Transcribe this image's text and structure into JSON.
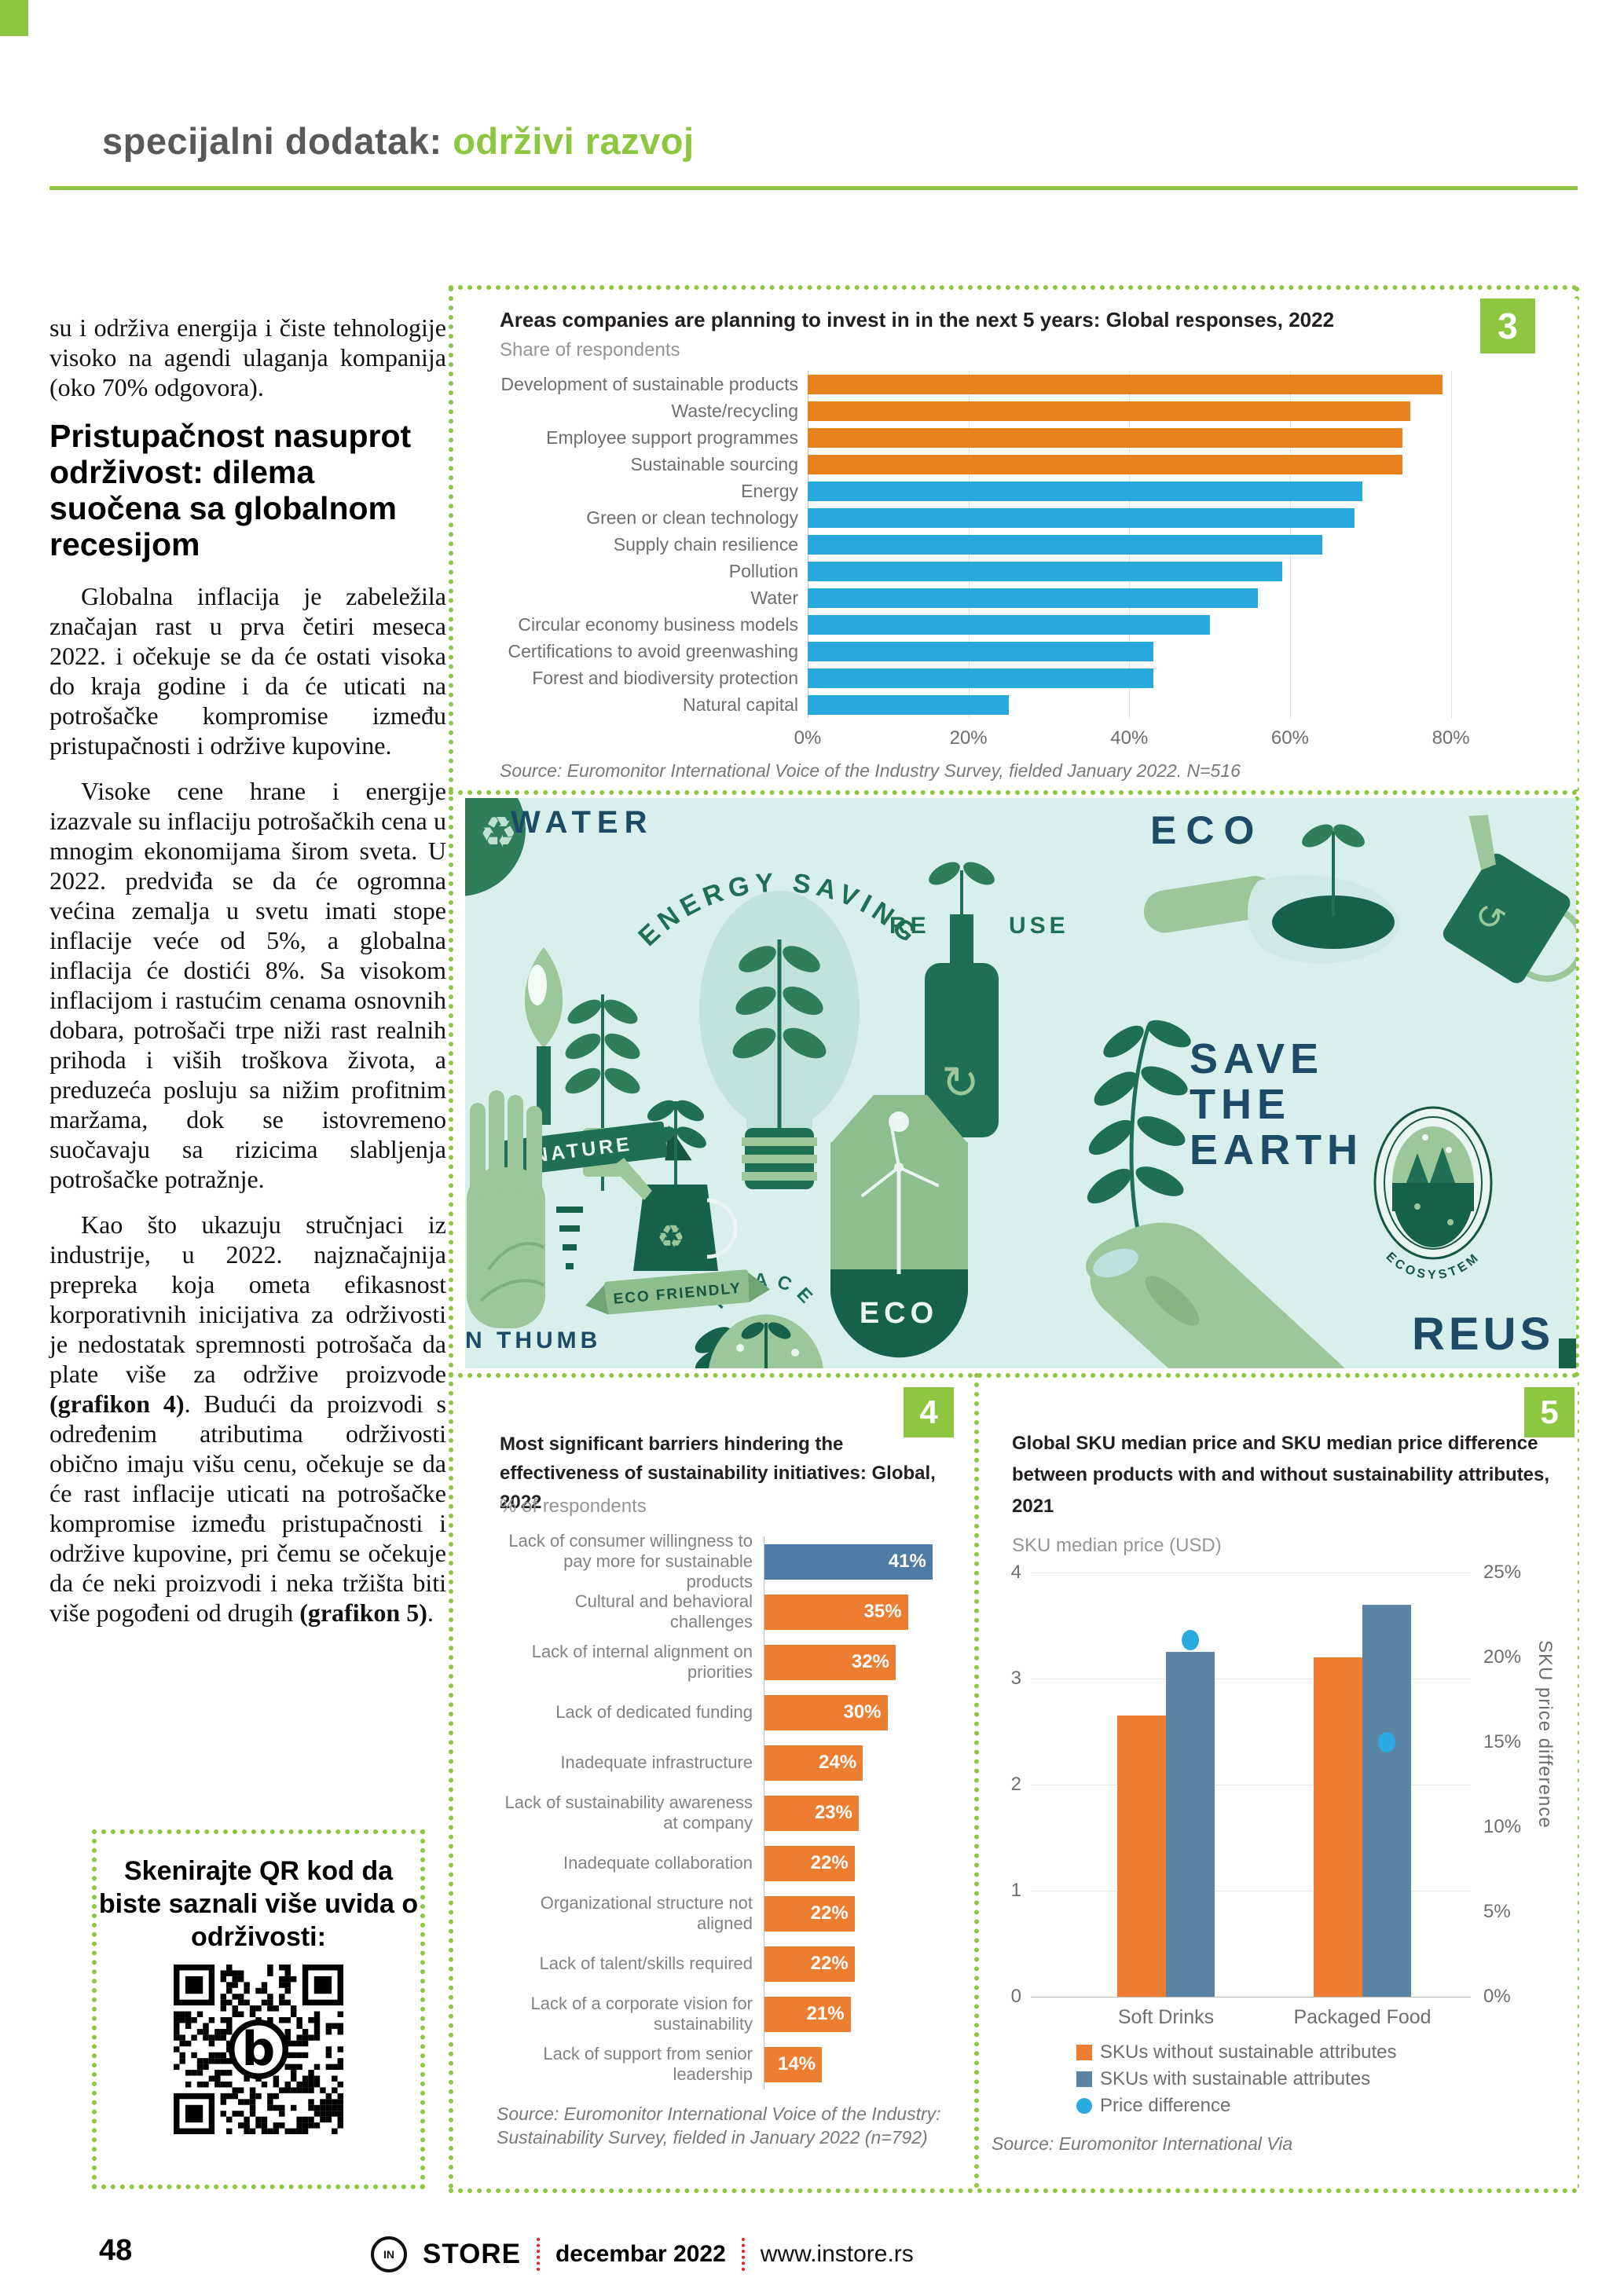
{
  "accent_green": "#8dc63f",
  "header": {
    "title_gray": "specijalni dodatak:",
    "title_green": "održivi razvoj"
  },
  "article": {
    "p1": "su i održiva energija i čiste tehnologije visoko na agendi ulaganja kompanija (oko 70% odgovora).",
    "heading": "Pristupačnost nasuprot održivost: dilema suočena sa globalnom recesijom",
    "p2": "Globalna inflacija je zabeležila značajan rast u prva četiri meseca 2022. i očekuje se da će ostati visoka do kraja godine i da će uticati na potrošačke kompromise između pristupačnosti i održive kupovine.",
    "p3": "Visoke cene hrane i energije izazvale su inflaciju potrošačkih cena u mnogim ekonomijama širom sveta. U 2022. predviđa se da će ogromna većina zemalja u svetu imati stope inflacije veće od 5%, a globalna inflacija će dostići 8%. Sa visokom inflacijom i rastućim cenama osnovnih dobara, potrošači trpe niži rast realnih prihoda i viših troškova života, a preduzeća posluju sa nižim profitnim maržama, dok se istovremeno suočavaju sa rizicima slabljenja potrošačke potražnje.",
    "p4_parts": {
      "a": "Kao što ukazuju stručnjaci iz industrije, u 2022. najznačajnija prepreka koja ometa efikasnost korporativnih inicijativa za održivosti je nedostatak spremnosti potrošača da plate više za održive proizvode ",
      "b": "(grafikon 4)",
      "c": ". Budući da proizvodi s određenim atributima održivosti obično imaju višu cenu, očekuje se da će rast inflacije uticati na potrošačke kompromise između pristupačnosti i održive kupovine, pri čemu se očekuje da će neki proizvodi i neka tržišta biti više pogođeni od drugih ",
      "d": "(grafikon 5)",
      "e": "."
    }
  },
  "qr_box": {
    "line1": "Skenirajte QR kod da",
    "line2": "biste saznali više uvida o",
    "line3": "održivosti:"
  },
  "illustration": {
    "water": "WATER",
    "energy_saving": "ENERGY SAVING",
    "re": "RE",
    "use": "USE",
    "nature": "NATURE",
    "eco_top": "ECO",
    "save_line1": "SAVE",
    "save_line2": "THE",
    "save_line3": "EARTH",
    "eco_small": "ECO",
    "eco_friendly": "ECO FRIENDLY",
    "peace": "PEACE",
    "eco_tag": "ECO",
    "ecosystem": "ECOSYSTEM",
    "green_thumb": "N THUMB",
    "reuse": "REUS"
  },
  "chart_data": [
    {
      "id": 3,
      "type": "bar",
      "badge": "3",
      "title": "Areas companies are planning to invest in in the next 5 years: Global responses, 2022",
      "subtitle": "Share  of respondents",
      "categories": [
        "Development of sustainable products",
        "Waste/recycling",
        "Employee support programmes",
        "Sustainable sourcing",
        "Energy",
        "Green or clean technology",
        "Supply chain resilience",
        "Pollution",
        "Water",
        "Circular economy business models",
        "Certifications to avoid greenwashing",
        "Forest and biodiversity protection",
        "Natural capital"
      ],
      "values": [
        79,
        75,
        74,
        74,
        69,
        68,
        64,
        59,
        56,
        50,
        43,
        43,
        25
      ],
      "orange_count": 4,
      "color_orange": "#e8821e",
      "color_blue": "#27a9dc",
      "x_ticks": [
        "0%",
        "20%",
        "40%",
        "60%",
        "80%"
      ],
      "x_tick_values": [
        0,
        20,
        40,
        60,
        80
      ],
      "xmax": 86,
      "grid": true,
      "legend_position": "none",
      "source": "Source: Euromonitor International Voice of the Industry Survey, fielded January 2022. N=516"
    },
    {
      "id": 4,
      "type": "bar",
      "badge": "4",
      "title": "Most significant barriers hindering the effectiveness of sustainability initiatives: Global, 2022",
      "subtitle": "% of respondents",
      "categories": [
        "Lack of consumer willingness to pay more for sustainable products",
        "Cultural and behavioral challenges",
        "Lack of internal alignment on priorities",
        "Lack of dedicated funding",
        "Inadequate infrastructure",
        "Lack of sustainability awareness at company",
        "Inadequate collaboration",
        "Organizational structure not aligned",
        "Lack of talent/skills required",
        "Lack of a corporate vision for sustainability",
        "Lack of support from senior leadership"
      ],
      "values": [
        41,
        35,
        32,
        30,
        24,
        23,
        22,
        22,
        22,
        21,
        14
      ],
      "value_labels": [
        "41%",
        "35%",
        "32%",
        "30%",
        "24%",
        "23%",
        "22%",
        "22%",
        "22%",
        "21%",
        "14%"
      ],
      "highlight_index": 0,
      "color_highlight": "#4e7ca6",
      "color_default": "#ed7d31",
      "xmax": 46,
      "grid": false,
      "legend_position": "none",
      "source": "Source: Euromonitor International Voice of the Industry: Sustainability Survey, fielded in January 2022 (n=792)"
    },
    {
      "id": 5,
      "type": "grouped-bar-with-points",
      "badge": "5",
      "title": "Global SKU median price and SKU median price difference between products with and without sustainability attributes, 2021",
      "subtitle": "SKU median price (USD)",
      "categories": [
        "Soft Drinks",
        "Packaged Food"
      ],
      "series": [
        {
          "name": "SKUs without sustainable attributes",
          "type": "bar",
          "color": "#ed7d31",
          "values": [
            2.65,
            3.2
          ]
        },
        {
          "name": "SKUs with sustainable attributes",
          "type": "bar",
          "color": "#5b84a5",
          "values": [
            3.25,
            3.7
          ]
        },
        {
          "name": "Price difference",
          "type": "point",
          "color": "#29abe2",
          "values_pct": [
            21,
            15
          ]
        }
      ],
      "left_axis": {
        "ticks": [
          "4",
          "3",
          "2",
          "1",
          "0"
        ],
        "max": 4
      },
      "right_axis": {
        "ticks": [
          "25%",
          "20%",
          "15%",
          "10%",
          "5%",
          "0%"
        ],
        "max": 25,
        "label": "SKU price difference"
      },
      "grid": true,
      "legend_position": "bottom",
      "source": "Source: Euromonitor International Via"
    }
  ],
  "footer": {
    "page": "48",
    "logo_in": "IN",
    "logo_store": "STORE",
    "date": "decembar 2022",
    "site": "www.instore.rs"
  }
}
